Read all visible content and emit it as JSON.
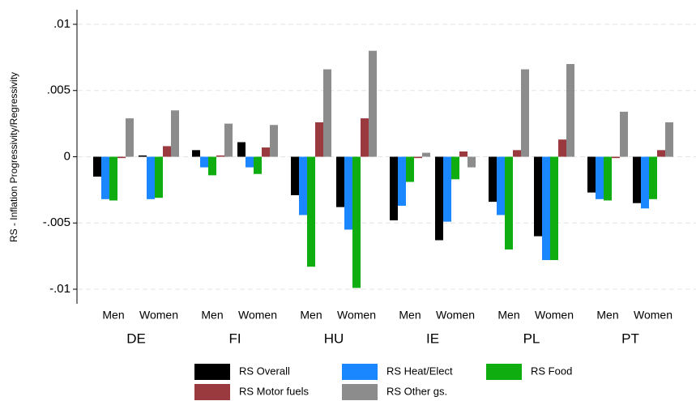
{
  "chart_data": {
    "type": "bar",
    "y_label": "RS - Inflation Progressivity/Regressivity",
    "groups": [
      "DE",
      "FI",
      "HU",
      "IE",
      "PL",
      "PT"
    ],
    "categories": [
      "Men",
      "Women",
      "Men",
      "Women",
      "Men",
      "Women",
      "Men",
      "Women",
      "Men",
      "Women",
      "Men",
      "Women"
    ],
    "ylim": [
      -0.0111,
      0.0111
    ],
    "yticks": [
      {
        "value": -0.01,
        "label": "-.01"
      },
      {
        "value": -0.005,
        "label": "-.005"
      },
      0,
      {
        "value": 0.005,
        "label": ".005"
      },
      {
        "value": 0.01,
        "label": ".01"
      }
    ],
    "grid": true,
    "series": [
      {
        "name": "RS Overall",
        "color": "#000000",
        "values": [
          -0.0015,
          0.0001,
          0.0005,
          0.0011,
          -0.0029,
          -0.0038,
          -0.0048,
          -0.0063,
          -0.0034,
          -0.006,
          -0.0027,
          -0.0035
        ]
      },
      {
        "name": "RS Heat/Elect",
        "color": "#1a86ff",
        "values": [
          -0.0032,
          -0.0032,
          -0.0008,
          -0.0008,
          -0.0044,
          -0.0055,
          -0.0037,
          -0.0049,
          -0.0044,
          -0.0078,
          -0.0032,
          -0.0039
        ]
      },
      {
        "name": "RS Food",
        "color": "#10ad10",
        "values": [
          -0.0033,
          -0.0031,
          -0.0014,
          -0.0013,
          -0.0083,
          -0.0099,
          -0.0019,
          -0.0017,
          -0.007,
          -0.0078,
          -0.0033,
          -0.0032
        ]
      },
      {
        "name": "RS Motor fuels",
        "color": "#9b3a3e",
        "values": [
          -0.0001,
          0.0008,
          0.0001,
          0.0007,
          0.0026,
          0.0029,
          -0.0001,
          0.0004,
          0.0005,
          0.0013,
          -0.0001,
          0.0005
        ]
      },
      {
        "name": "RS Other gs.",
        "color": "#8c8c8c",
        "values": [
          0.0029,
          0.0035,
          0.0025,
          0.0024,
          0.0066,
          0.008,
          0.0003,
          -0.0008,
          0.0066,
          0.007,
          0.0034,
          0.0026
        ]
      }
    ]
  }
}
